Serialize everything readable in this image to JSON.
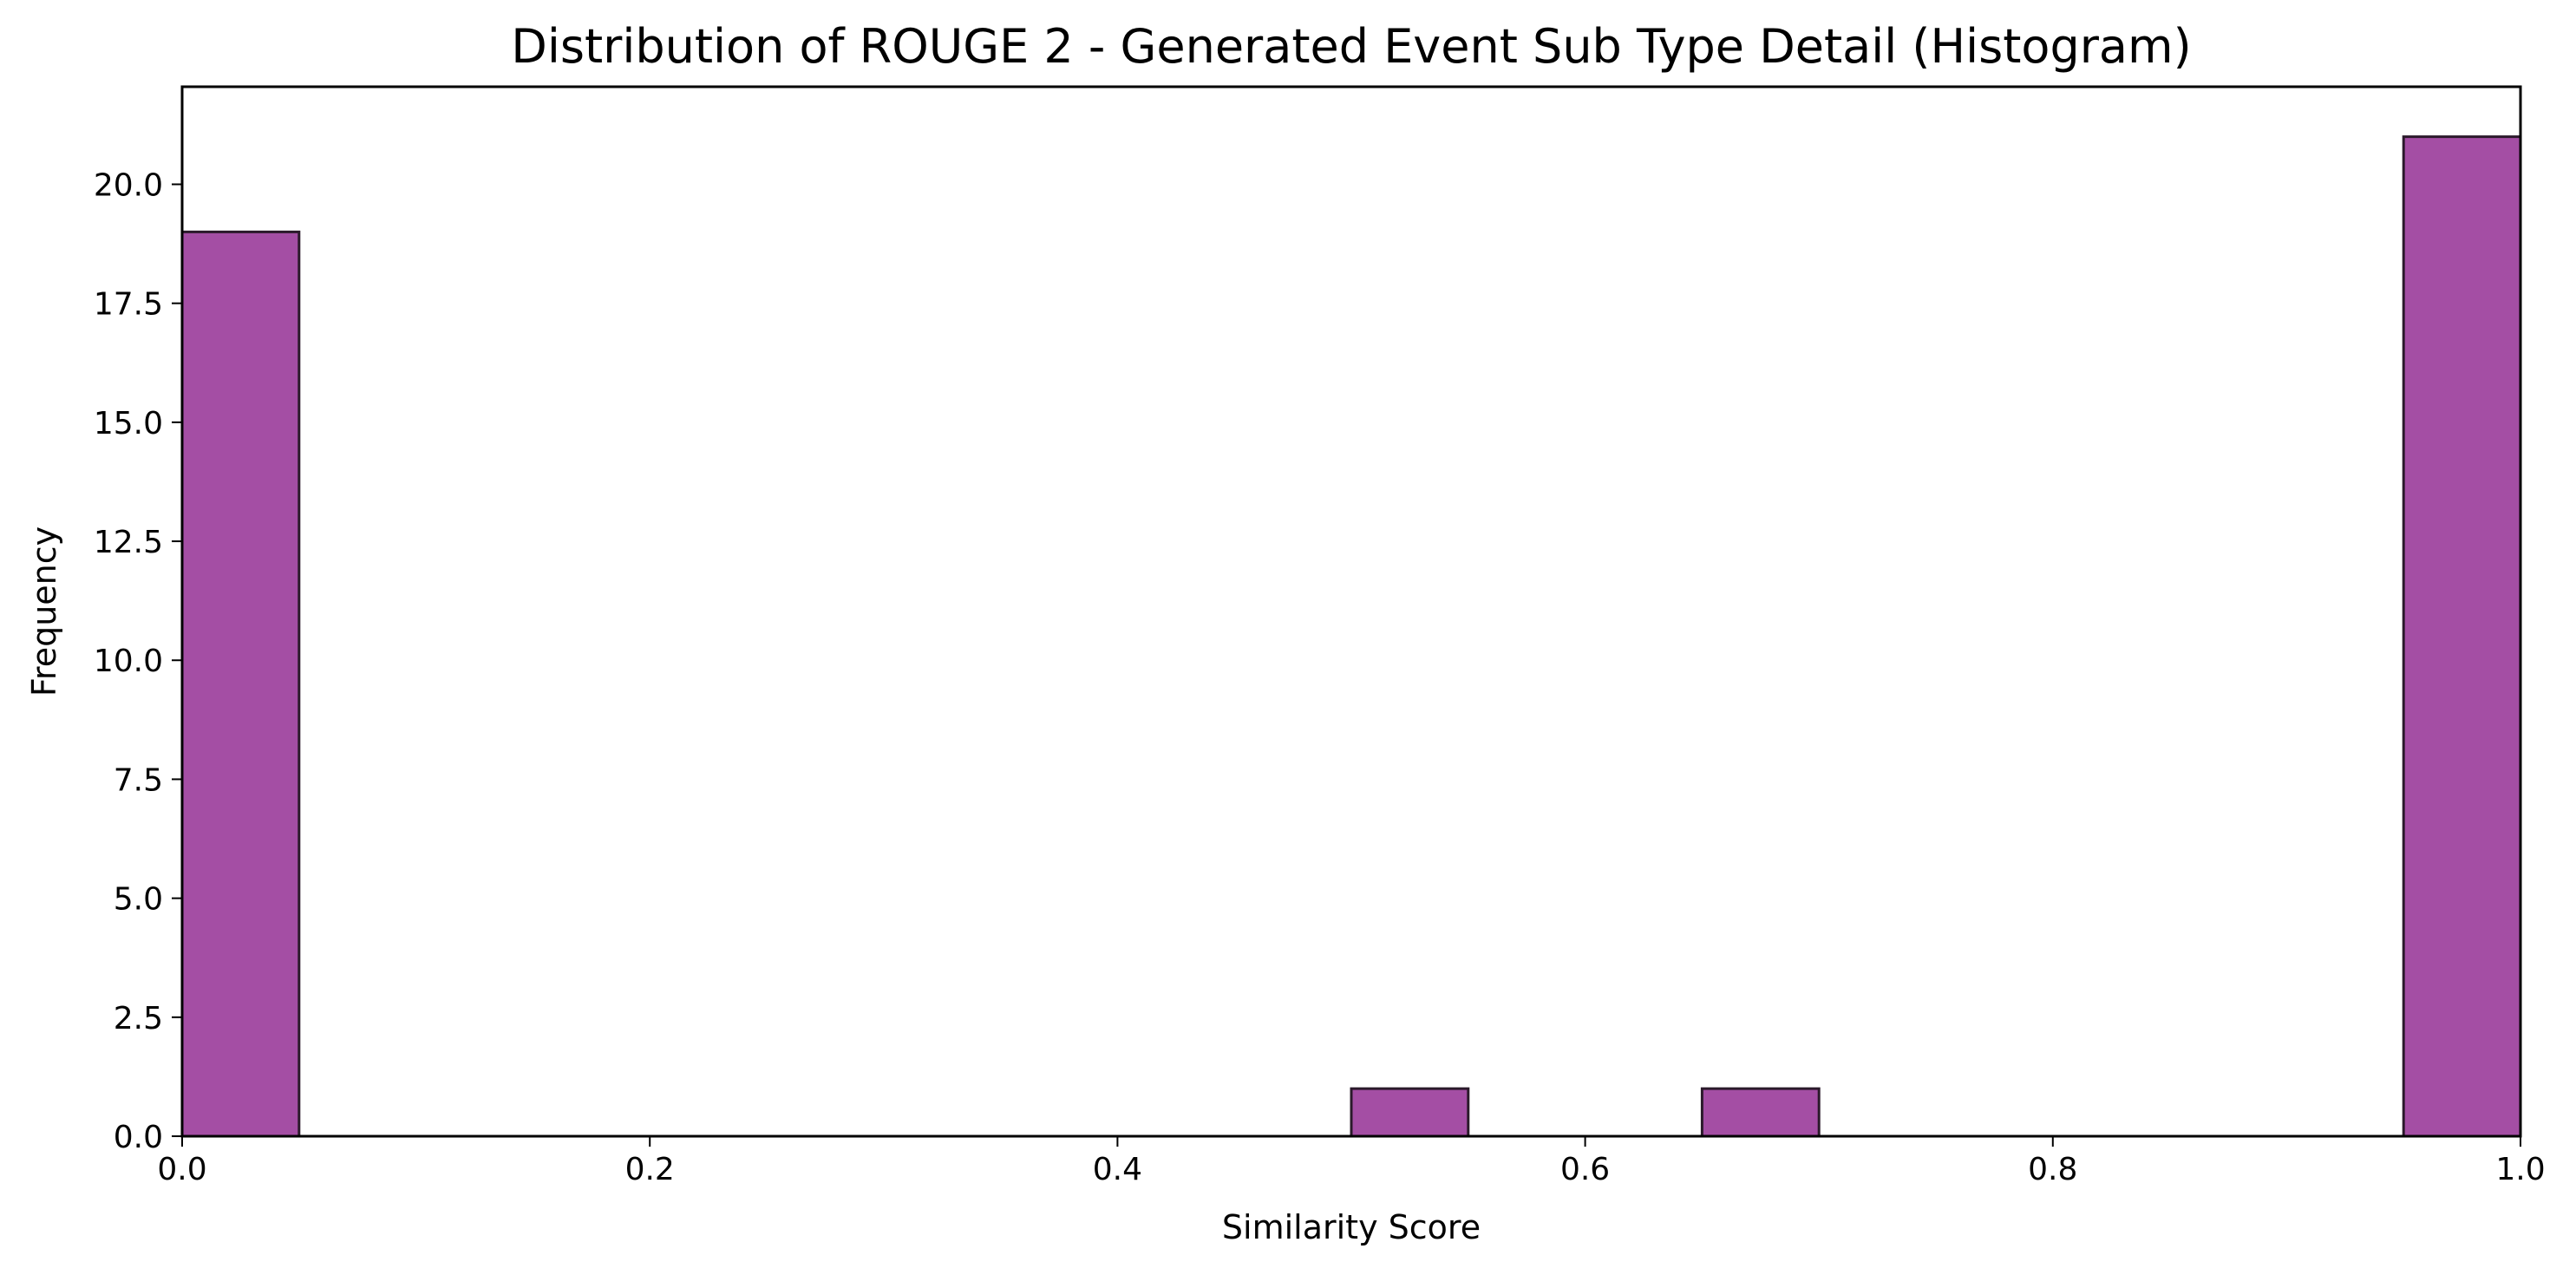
{
  "chart_data": {
    "type": "bar",
    "title": "Distribution of ROUGE 2 - Generated Event Sub Type Detail (Histogram)",
    "xlabel": "Similarity Score",
    "ylabel": "Frequency",
    "xlim": [
      0.0,
      1.0
    ],
    "ylim": [
      0.0,
      22.05
    ],
    "x_ticks": [
      "0.0",
      "0.2",
      "0.4",
      "0.6",
      "0.8",
      "1.0"
    ],
    "y_ticks": [
      "0.0",
      "2.5",
      "5.0",
      "7.5",
      "10.0",
      "12.5",
      "15.0",
      "17.5",
      "20.0"
    ],
    "bin_edges": [
      0.0,
      0.05,
      0.1,
      0.15,
      0.2,
      0.25,
      0.3,
      0.35,
      0.4,
      0.45,
      0.5,
      0.55,
      0.6,
      0.65,
      0.7,
      0.75,
      0.8,
      0.85,
      0.9,
      0.95,
      1.0
    ],
    "values": [
      19,
      0,
      0,
      0,
      0,
      0,
      0,
      0,
      0,
      0,
      1,
      0,
      0,
      1,
      0,
      0,
      0,
      0,
      0,
      21
    ],
    "bar_color": "#a44ea4",
    "edge_color": "#2b1a2b",
    "grid": false,
    "legend": "none"
  }
}
